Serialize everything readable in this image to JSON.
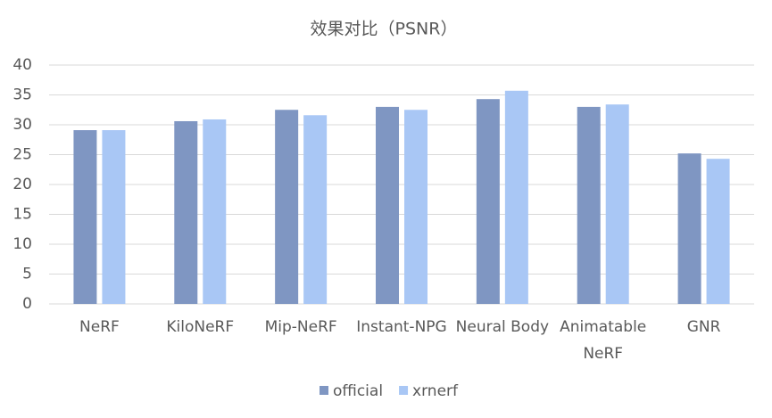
{
  "chart_data": {
    "type": "bar",
    "title": "效果对比（PSNR）",
    "categories": [
      "NeRF",
      "KiloNeRF",
      "Mip-NeRF",
      "Instant-NPG",
      "Neural Body",
      "Animatable NeRF",
      "GNR"
    ],
    "series": [
      {
        "name": "official",
        "color": "#7f96c2",
        "values": [
          29.1,
          30.6,
          32.5,
          33.0,
          34.3,
          33.0,
          25.2
        ]
      },
      {
        "name": "xrnerf",
        "color": "#a9c7f5",
        "values": [
          29.1,
          30.9,
          31.6,
          32.5,
          35.7,
          33.4,
          24.3
        ]
      }
    ],
    "ylim": [
      0,
      40
    ],
    "yticks": [
      0,
      5,
      10,
      15,
      20,
      25,
      30,
      35,
      40
    ],
    "grid": true,
    "legend": "bottom"
  }
}
